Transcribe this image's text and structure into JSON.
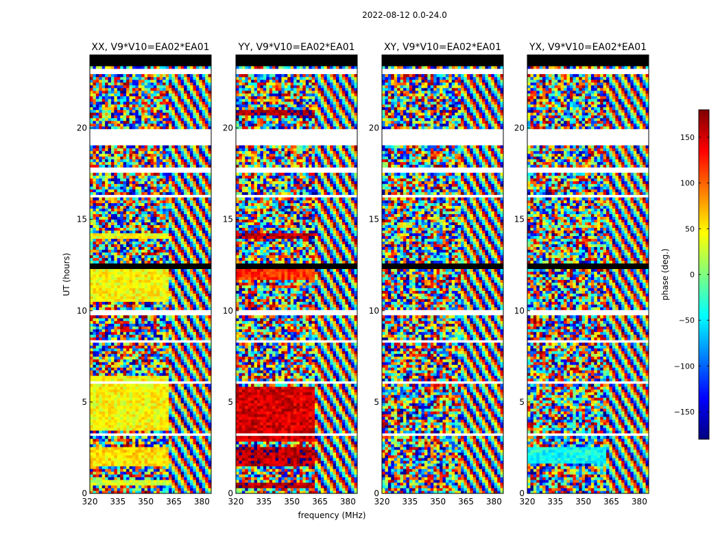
{
  "figure": {
    "suptitle": "2022-08-12 0.0-24.0",
    "xlabel": "frequency (MHz)",
    "ylabel": "UT (hours)",
    "colorbar_label": "phase (deg.)",
    "colorbar_ticks": [
      150,
      100,
      50,
      0,
      -50,
      -100,
      -150
    ],
    "colorbar_tick_labels": [
      "150",
      "100",
      "50",
      "0",
      "−50",
      "−100",
      "−150"
    ]
  },
  "chart_data": {
    "type": "heatmap",
    "title": "2022-08-12 0.0-24.0",
    "xlabel": "frequency (MHz)",
    "ylabel": "UT (hours)",
    "xlim": [
      320,
      385
    ],
    "ylim": [
      0,
      24
    ],
    "x_ticks": [
      320,
      335,
      350,
      365,
      380
    ],
    "y_ticks": [
      0,
      5,
      10,
      15,
      20
    ],
    "color_range": [
      -180,
      180
    ],
    "colormap": "jet",
    "panels": [
      {
        "title": "XX, V9*V10=EA02*EA01",
        "base_phase": 40,
        "rfi_rows": [
          [
            0.4,
            0.7,
            30
          ],
          [
            1.5,
            2.5,
            55
          ],
          [
            3.5,
            6.5,
            45
          ],
          [
            10.5,
            12.5,
            45
          ],
          [
            13.9,
            14.2,
            40
          ]
        ]
      },
      {
        "title": "YY, V9*V10=EA02*EA01",
        "base_phase": 150,
        "rfi_rows": [
          [
            0.3,
            0.6,
            160
          ],
          [
            1.5,
            2.5,
            160
          ],
          [
            2.8,
            5.8,
            150
          ],
          [
            11.7,
            12.5,
            120
          ],
          [
            13.9,
            14.2,
            160
          ],
          [
            20.7,
            21.0,
            170
          ]
        ]
      },
      {
        "title": "XY, V9*V10=EA02*EA01",
        "base_phase": 0,
        "rfi_rows": []
      },
      {
        "title": "YX, V9*V10=EA02*EA01",
        "base_phase": -20,
        "rfi_rows": [
          [
            1.7,
            2.5,
            -40
          ]
        ]
      }
    ],
    "flagged_white_rows": [
      [
        1.5,
        1.55
      ],
      [
        2.5,
        2.55
      ],
      [
        3.2,
        3.25
      ],
      [
        4.0,
        4.05
      ],
      [
        6.0,
        6.2
      ],
      [
        7.3,
        7.35
      ],
      [
        8.2,
        8.4
      ],
      [
        9.8,
        10.0
      ],
      [
        12.6,
        12.65
      ],
      [
        16.2,
        16.3
      ],
      [
        17.5,
        17.9
      ],
      [
        19.0,
        19.3
      ],
      [
        19.4,
        20.0
      ],
      [
        22.2,
        22.25
      ],
      [
        23.0,
        23.3
      ]
    ],
    "flagged_black_rows": [
      [
        12.3,
        12.6
      ],
      [
        23.4,
        24.0
      ]
    ]
  }
}
